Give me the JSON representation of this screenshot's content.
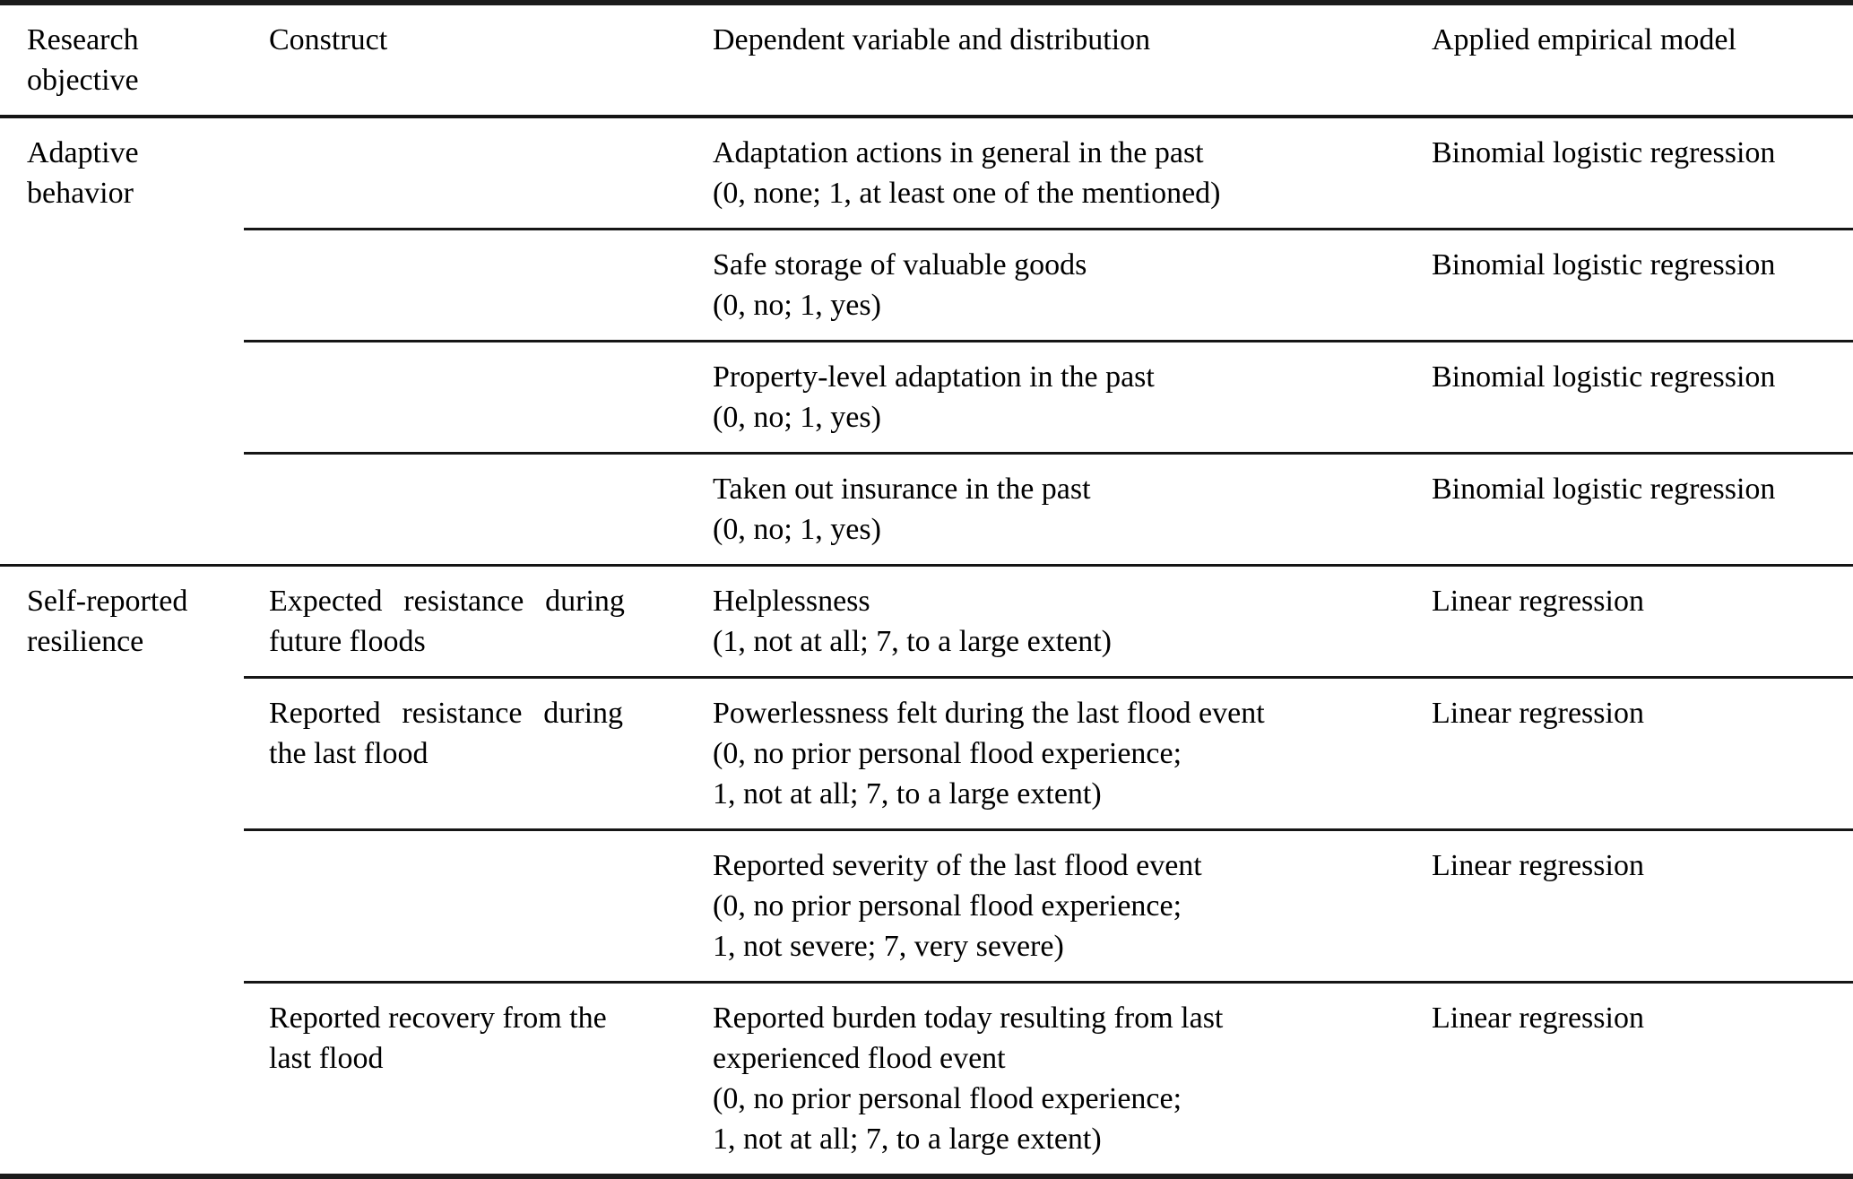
{
  "header": {
    "col1_lines": [
      "Research",
      "objective"
    ],
    "col2": "Construct",
    "col3": "Dependent variable and distribution",
    "col4": "Applied empirical model"
  },
  "groups": [
    {
      "objective_lines": [
        "Adaptive",
        "behavior"
      ],
      "rows": [
        {
          "construct_lines": [
            "",
            ""
          ],
          "dependent_lines": [
            "Adaptation actions in general in the past",
            "(0, none; 1, at least one of the mentioned)"
          ],
          "model": "Binomial logistic regression"
        },
        {
          "construct_lines": [
            "",
            ""
          ],
          "dependent_lines": [
            "Safe storage of valuable goods",
            "(0, no; 1, yes)"
          ],
          "model": "Binomial logistic regression"
        },
        {
          "construct_lines": [
            "",
            ""
          ],
          "dependent_lines": [
            "Property-level adaptation in the past",
            "(0, no; 1, yes)"
          ],
          "model": "Binomial logistic regression"
        },
        {
          "construct_lines": [
            "",
            ""
          ],
          "dependent_lines": [
            "Taken out insurance in the past",
            "(0, no; 1, yes)"
          ],
          "model": "Binomial logistic regression"
        }
      ]
    },
    {
      "objective_lines": [
        "Self-reported",
        "resilience"
      ],
      "rows": [
        {
          "construct_lines": [
            "Expected resistance during",
            "future floods"
          ],
          "dependent_lines": [
            "Helplessness",
            "(1, not at all; 7, to a large extent)"
          ],
          "model": "Linear regression"
        },
        {
          "construct_lines": [
            "Reported resistance during",
            "the last flood"
          ],
          "dependent_lines": [
            "Powerlessness felt during the last flood event",
            "(0, no prior personal flood experience;",
            "1, not at all; 7, to a large extent)"
          ],
          "model": "Linear regression"
        },
        {
          "construct_lines": [
            "",
            ""
          ],
          "dependent_lines": [
            "Reported severity of the last flood event",
            "(0, no prior personal flood experience;",
            "1, not severe; 7, very severe)"
          ],
          "model": "Linear regression"
        },
        {
          "construct_lines": [
            "Reported recovery from the",
            "last flood"
          ],
          "dependent_lines": [
            "Reported burden today resulting from last",
            "experienced flood event",
            "(0, no prior personal flood experience;",
            "1, not at all; 7, to a large extent)"
          ],
          "model": "Linear regression"
        }
      ]
    }
  ],
  "colors": {
    "text": "#000000",
    "rule": "#161616",
    "background": "#ffffff"
  }
}
